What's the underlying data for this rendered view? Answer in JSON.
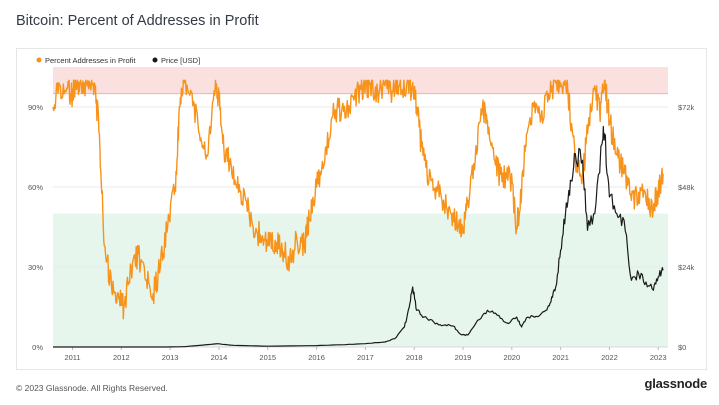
{
  "title": "Bitcoin: Percent of Addresses in Profit",
  "footer": "© 2023 Glassnode. All Rights Reserved.",
  "brand": "glassnode",
  "watermark": "glassnode",
  "colors": {
    "series_profit": "#f7931a",
    "series_price": "#1a1a1a",
    "band_red": "#fbe0e0",
    "band_green": "#e6f6ec",
    "grid": "#eaeaea",
    "axis_text": "#555555"
  },
  "chart_data": {
    "type": "line",
    "title": "Bitcoin: Percent of Addresses in Profit",
    "legend": [
      "Percent Addresses in Profit",
      "Price [USD]"
    ],
    "legend_position": "top-left",
    "x_ticks": [
      "2011",
      "2012",
      "2013",
      "2014",
      "2015",
      "2016",
      "2017",
      "2018",
      "2019",
      "2020",
      "2021",
      "2022",
      "2023"
    ],
    "x_range": [
      2010.6,
      2023.2
    ],
    "y_left_ticks": [
      "0%",
      "30%",
      "60%",
      "90%"
    ],
    "y_left_range": [
      0,
      105
    ],
    "y_right_ticks": [
      "$0",
      "$24k",
      "$48k",
      "$72k"
    ],
    "y_right_range": [
      0,
      84000
    ],
    "bands": [
      {
        "from": 95,
        "to": 105,
        "color": "red"
      },
      {
        "from": 0,
        "to": 50,
        "color": "green"
      }
    ],
    "series": [
      {
        "name": "Percent Addresses in Profit",
        "axis": "left",
        "x": [
          2010.6,
          2010.75,
          2010.9,
          2011.0,
          2011.05,
          2011.15,
          2011.3,
          2011.45,
          2011.55,
          2011.65,
          2011.8,
          2011.95,
          2012.05,
          2012.2,
          2012.35,
          2012.5,
          2012.65,
          2012.8,
          2012.95,
          2013.1,
          2013.2,
          2013.3,
          2013.45,
          2013.6,
          2013.75,
          2013.9,
          2014.0,
          2014.1,
          2014.25,
          2014.4,
          2014.55,
          2014.7,
          2014.85,
          2015.0,
          2015.15,
          2015.3,
          2015.45,
          2015.6,
          2015.75,
          2015.85,
          2016.0,
          2016.15,
          2016.3,
          2016.45,
          2016.6,
          2016.75,
          2016.9,
          2017.0,
          2017.1,
          2017.25,
          2017.4,
          2017.55,
          2017.7,
          2017.85,
          2017.95,
          2018.05,
          2018.15,
          2018.3,
          2018.45,
          2018.6,
          2018.75,
          2018.9,
          2019.0,
          2019.1,
          2019.25,
          2019.4,
          2019.5,
          2019.65,
          2019.8,
          2019.95,
          2020.1,
          2020.2,
          2020.3,
          2020.45,
          2020.6,
          2020.75,
          2020.9,
          2021.0,
          2021.15,
          2021.3,
          2021.45,
          2021.55,
          2021.7,
          2021.8,
          2021.9,
          2022.0,
          2022.15,
          2022.3,
          2022.45,
          2022.6,
          2022.75,
          2022.9,
          2023.0,
          2023.1
        ],
        "y": [
          90,
          98,
          97,
          94,
          99,
          99,
          98,
          99,
          80,
          38,
          22,
          18,
          15,
          30,
          35,
          25,
          20,
          30,
          45,
          60,
          90,
          99,
          95,
          80,
          72,
          96,
          94,
          75,
          68,
          58,
          55,
          45,
          42,
          38,
          40,
          36,
          33,
          40,
          38,
          48,
          60,
          68,
          85,
          90,
          86,
          94,
          97,
          98,
          99,
          96,
          98,
          96,
          98,
          99,
          97,
          90,
          75,
          62,
          60,
          55,
          50,
          46,
          45,
          55,
          70,
          90,
          85,
          70,
          62,
          67,
          45,
          58,
          80,
          90,
          86,
          95,
          99,
          99,
          96,
          70,
          65,
          80,
          98,
          88,
          100,
          85,
          72,
          65,
          55,
          58,
          55,
          52,
          58,
          65
        ]
      },
      {
        "name": "Price [USD]",
        "axis": "right",
        "x": [
          2010.6,
          2011.5,
          2012.0,
          2012.95,
          2013.3,
          2013.85,
          2013.95,
          2014.3,
          2015.0,
          2016.0,
          2016.5,
          2017.0,
          2017.4,
          2017.6,
          2017.8,
          2017.9,
          2017.97,
          2018.05,
          2018.2,
          2018.4,
          2018.6,
          2018.8,
          2018.95,
          2019.1,
          2019.3,
          2019.5,
          2019.7,
          2019.9,
          2020.1,
          2020.2,
          2020.3,
          2020.5,
          2020.7,
          2020.8,
          2020.9,
          2021.0,
          2021.1,
          2021.2,
          2021.3,
          2021.45,
          2021.55,
          2021.7,
          2021.85,
          2021.9,
          2022.0,
          2022.15,
          2022.3,
          2022.45,
          2022.6,
          2022.75,
          2022.9,
          2023.0,
          2023.1
        ],
        "y": [
          0,
          10,
          5,
          13,
          100,
          800,
          1000,
          500,
          250,
          430,
          650,
          1000,
          1500,
          2500,
          6000,
          12000,
          18000,
          11000,
          9000,
          7500,
          6500,
          6300,
          3800,
          3600,
          8000,
          11000,
          9500,
          7200,
          9000,
          6000,
          8800,
          9200,
          11000,
          13500,
          18000,
          29000,
          40000,
          50000,
          58000,
          56000,
          35000,
          40000,
          61000,
          64000,
          45000,
          40000,
          38000,
          20000,
          22000,
          19500,
          17000,
          21000,
          23000
        ]
      }
    ]
  }
}
